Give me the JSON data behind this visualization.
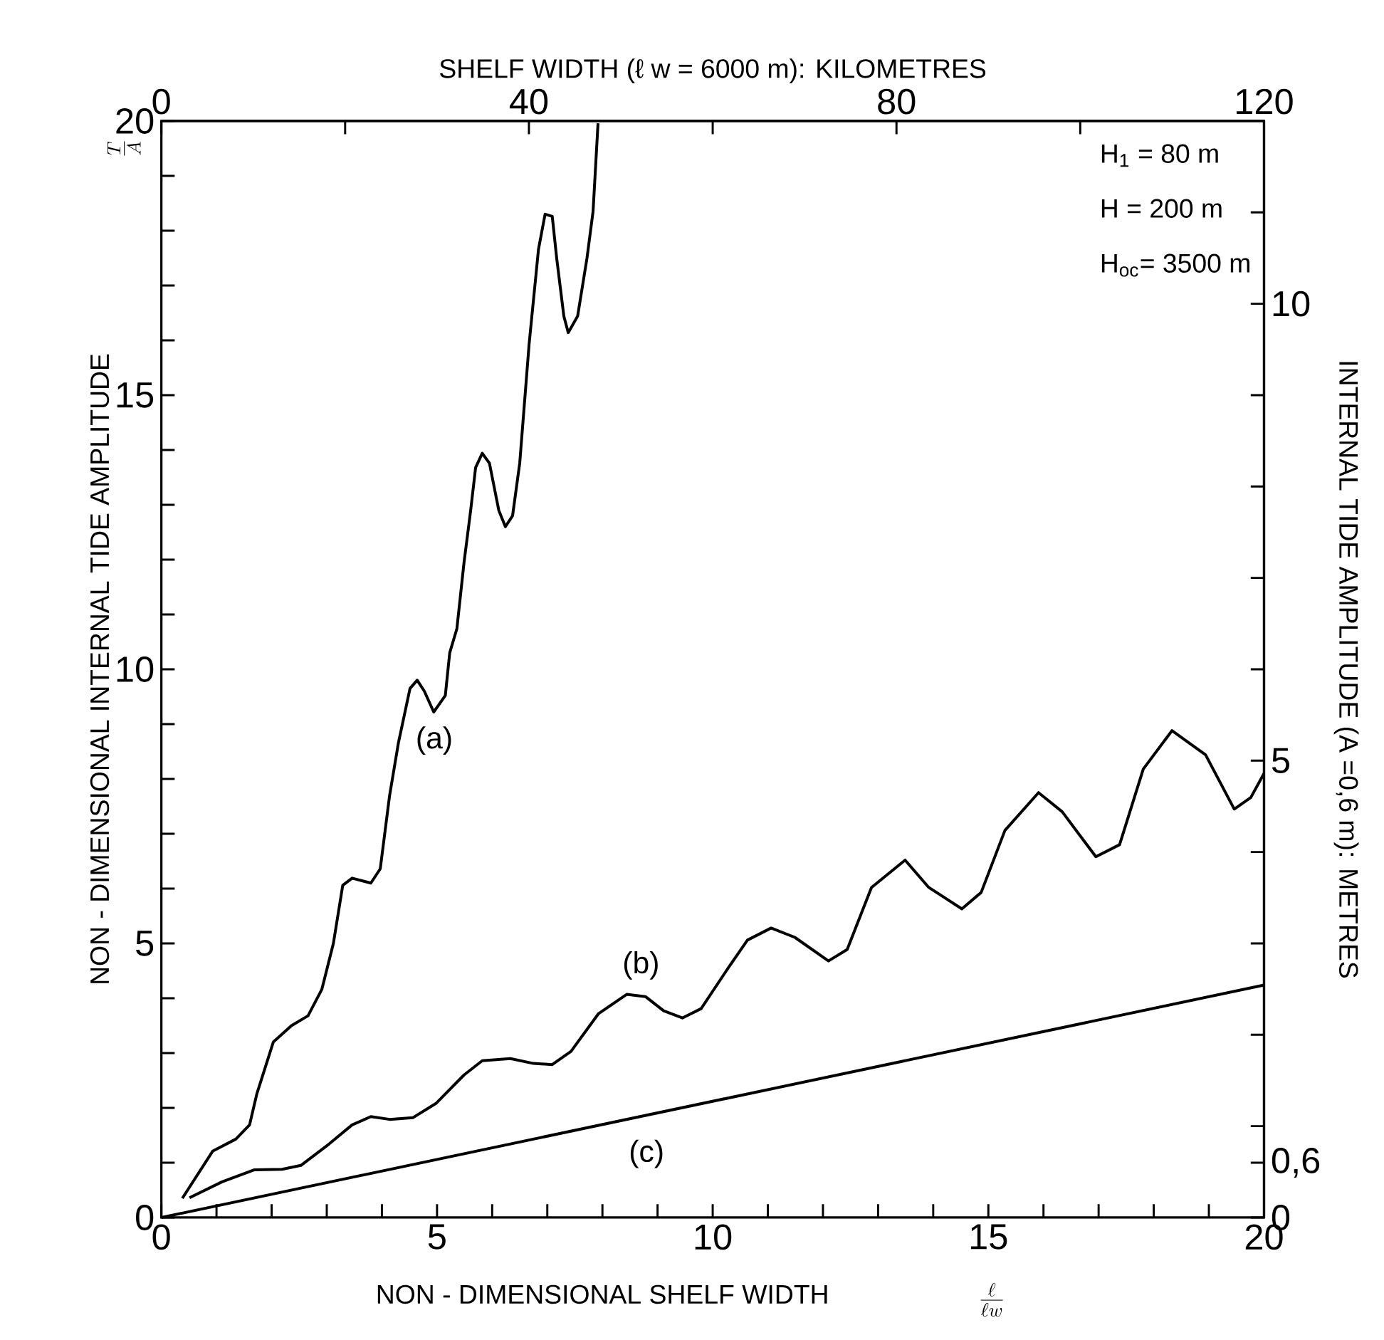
{
  "chart_data": {
    "type": "line",
    "xlabel": "NON - DIMENSIONAL SHELF WIDTH",
    "ylabel": "NON - DIMENSIONAL INTERNAL TIDE AMPLITUDE",
    "x2label": "SHELF WIDTH  (ℓ w = 6000 m): KILOMETRES",
    "y2label": "INTERNAL TIDE AMPLITUDE (A =0,6 m): METRES",
    "xlim": [
      0,
      20
    ],
    "ylim": [
      0,
      20
    ],
    "x2lim": [
      0,
      120
    ],
    "y2lim": [
      0,
      12
    ],
    "xticks": [
      0,
      {
        "value": 1,
        "label": null
      },
      {
        "value": 2,
        "label": null
      },
      {
        "value": 3,
        "label": null
      },
      {
        "value": 4,
        "label": null
      },
      5,
      {
        "value": 6,
        "label": null
      },
      {
        "value": 7,
        "label": null
      },
      {
        "value": 8,
        "label": null
      },
      {
        "value": 9,
        "label": null
      },
      10,
      {
        "value": 11,
        "label": null
      },
      {
        "value": 12,
        "label": null
      },
      {
        "value": 13,
        "label": null
      },
      {
        "value": 14,
        "label": null
      },
      15,
      {
        "value": 16,
        "label": null
      },
      {
        "value": 17,
        "label": null
      },
      {
        "value": 18,
        "label": null
      },
      {
        "value": 19,
        "label": null
      },
      20
    ],
    "yticks": [
      0,
      {
        "value": 1,
        "label": null
      },
      {
        "value": 2,
        "label": null
      },
      {
        "value": 3,
        "label": null
      },
      {
        "value": 4,
        "label": null
      },
      5,
      {
        "value": 6,
        "label": null
      },
      {
        "value": 7,
        "label": null
      },
      {
        "value": 8,
        "label": null
      },
      {
        "value": 9,
        "label": null
      },
      10,
      {
        "value": 11,
        "label": null
      },
      {
        "value": 12,
        "label": null
      },
      {
        "value": 13,
        "label": null
      },
      {
        "value": 14,
        "label": null
      },
      15,
      {
        "value": 16,
        "label": null
      },
      {
        "value": 17,
        "label": null
      },
      {
        "value": 18,
        "label": null
      },
      {
        "value": 19,
        "label": null
      },
      20
    ],
    "x2ticks": [
      0,
      {
        "value": 20,
        "label": null
      },
      40,
      {
        "value": 60,
        "label": null
      },
      80,
      {
        "value": 100,
        "label": null
      },
      120
    ],
    "y2ticks": [
      0,
      {
        "value": 0.6,
        "label": "0,6"
      },
      {
        "value": 1,
        "label": null
      },
      {
        "value": 2,
        "label": null
      },
      {
        "value": 3,
        "label": null
      },
      {
        "value": 4,
        "label": null
      },
      5,
      {
        "value": 6,
        "label": null
      },
      {
        "value": 7,
        "label": null
      },
      {
        "value": 8,
        "label": null
      },
      {
        "value": 9,
        "label": null
      },
      10,
      {
        "value": 11,
        "label": null
      }
    ],
    "marker": "none",
    "line_style": "solid",
    "series": [
      {
        "color": "#000000",
        "x": [
          0.38,
          0.93,
          1.35,
          1.6,
          1.73,
          2.03,
          2.36,
          2.66,
          2.91,
          3.12,
          3.29,
          3.46,
          3.8,
          3.97,
          4.14,
          4.3,
          4.51,
          4.64,
          4.77,
          4.94,
          5.15,
          5.23,
          5.36,
          5.49,
          5.61,
          5.7,
          5.82,
          5.95,
          6.12,
          6.24,
          6.37,
          6.5,
          6.67,
          6.84,
          6.96,
          7.09,
          7.17,
          7.3,
          7.38,
          7.55,
          7.72,
          7.83,
          7.92
        ],
        "values": [
          0.35,
          1.21,
          1.43,
          1.69,
          2.25,
          3.2,
          3.5,
          3.68,
          4.16,
          5.0,
          6.06,
          6.19,
          6.1,
          6.36,
          7.7,
          8.66,
          9.65,
          9.8,
          9.6,
          9.22,
          9.52,
          10.3,
          10.74,
          11.95,
          12.9,
          13.68,
          13.94,
          13.76,
          12.9,
          12.6,
          12.8,
          13.76,
          15.93,
          17.66,
          18.3,
          18.26,
          17.5,
          16.44,
          16.14,
          16.44,
          17.5,
          18.35,
          19.96
        ]
      },
      {
        "color": "#000000",
        "x": [
          0.51,
          1.1,
          1.69,
          2.19,
          2.53,
          3.04,
          3.46,
          3.8,
          4.14,
          4.56,
          4.98,
          5.49,
          5.82,
          6.33,
          6.75,
          7.09,
          7.43,
          7.93,
          8.44,
          8.78,
          9.11,
          9.45,
          9.79,
          10.28,
          10.63,
          11.06,
          11.49,
          12.1,
          12.44,
          12.88,
          13.49,
          13.92,
          14.52,
          14.87,
          15.3,
          15.91,
          16.34,
          16.95,
          17.38,
          17.81,
          18.33,
          18.94,
          19.46,
          19.76,
          20.0
        ],
        "values": [
          0.36,
          0.65,
          0.87,
          0.88,
          0.95,
          1.34,
          1.69,
          1.84,
          1.79,
          1.82,
          2.08,
          2.6,
          2.86,
          2.9,
          2.81,
          2.79,
          3.03,
          3.72,
          4.07,
          4.03,
          3.77,
          3.64,
          3.81,
          4.55,
          5.06,
          5.28,
          5.11,
          4.68,
          4.89,
          6.02,
          6.52,
          6.02,
          5.63,
          5.93,
          7.06,
          7.75,
          7.4,
          6.58,
          6.8,
          8.18,
          8.88,
          8.44,
          7.45,
          7.66,
          8.1
        ]
      },
      {
        "color": "#000000",
        "x": [
          0,
          20
        ],
        "values": [
          0,
          4.24
        ]
      }
    ],
    "annotations": [
      "(a)",
      "(b)",
      "(c)",
      "H$_{1}$ = 80 m",
      "H = 200 m",
      "H$_{oc}$= 3500 m",
      "\\frac{T}{A}",
      "\\frac{\\ell}{\\ell w}"
    ]
  }
}
